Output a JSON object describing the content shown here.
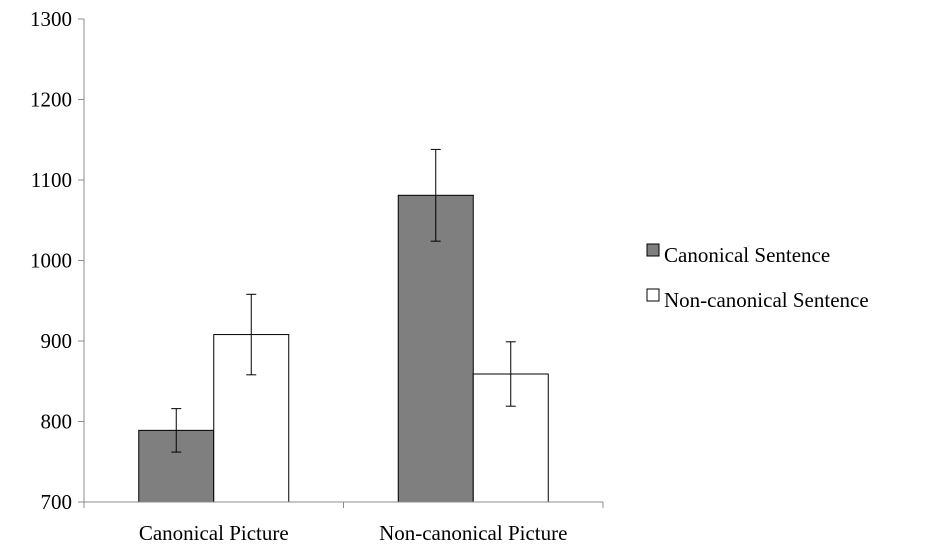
{
  "chart_data": {
    "type": "bar",
    "title": "",
    "xlabel": "",
    "ylabel": "",
    "categories": [
      "Canonical Picture",
      "Non-canonical Picture"
    ],
    "series": [
      {
        "name": "Canonical Sentence",
        "values": [
          789,
          1081
        ],
        "error": [
          27,
          57
        ],
        "color": "#7f7f7f"
      },
      {
        "name": "Non-canonical Sentence",
        "values": [
          908,
          859
        ],
        "error": [
          50,
          40
        ],
        "color": "#ffffff"
      }
    ],
    "ylim": [
      700,
      1300
    ],
    "yticks": [
      "700",
      "800",
      "900",
      "1000",
      "1100",
      "1200",
      "1300"
    ],
    "grid": false,
    "legend_position": "right"
  }
}
